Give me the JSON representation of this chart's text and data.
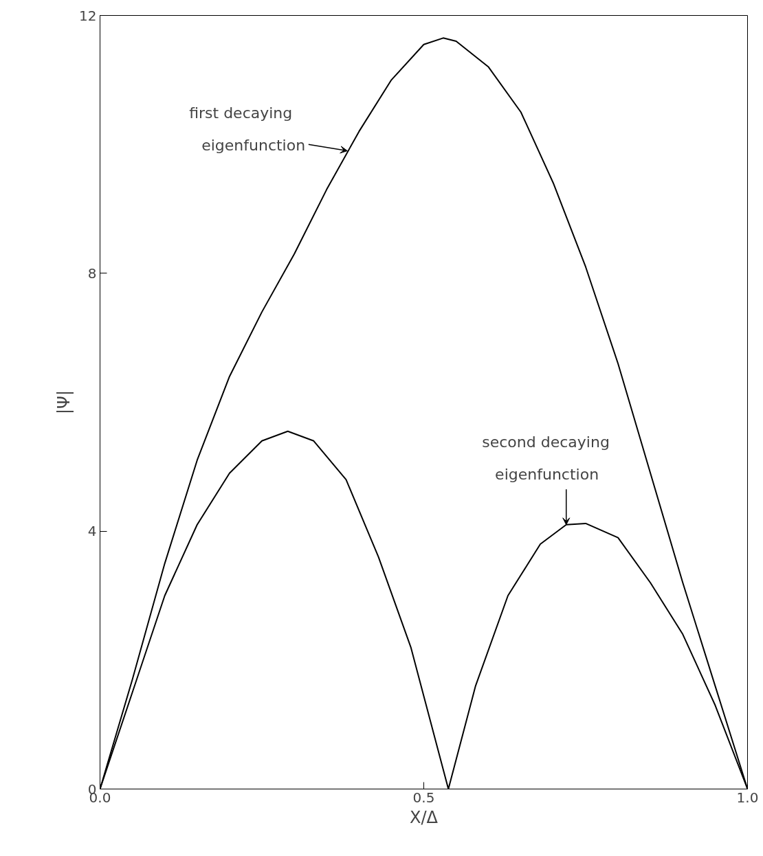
{
  "chart_data": {
    "type": "line",
    "xlabel": "X/Δ",
    "ylabel": "|Ψ|",
    "xlim": [
      0,
      1
    ],
    "ylim": [
      0,
      12
    ],
    "xticks": [
      {
        "value": 0,
        "label": "0.0"
      },
      0.5,
      {
        "value": 1,
        "label": "1.0"
      }
    ],
    "yticks": [
      0,
      4,
      8,
      12
    ],
    "grid": false,
    "marker": "none",
    "line_style": "solid",
    "series": [
      {
        "color": "#000000",
        "x": [
          0,
          0.05,
          0.1,
          0.15,
          0.2,
          0.25,
          0.3,
          0.35,
          0.4,
          0.45,
          0.5,
          0.53,
          0.55,
          0.6,
          0.65,
          0.7,
          0.75,
          0.8,
          0.85,
          0.9,
          0.95,
          1.0
        ],
        "values": [
          0,
          1.7,
          3.5,
          5.1,
          6.4,
          7.4,
          8.3,
          9.3,
          10.2,
          11.0,
          11.55,
          11.65,
          11.6,
          11.2,
          10.5,
          9.4,
          8.1,
          6.6,
          4.9,
          3.2,
          1.6,
          0
        ]
      },
      {
        "color": "#000000",
        "x": [
          0,
          0.05,
          0.1,
          0.15,
          0.2,
          0.25,
          0.29,
          0.33,
          0.38,
          0.43,
          0.48,
          0.538,
          0.58,
          0.63,
          0.68,
          0.72,
          0.75,
          0.8,
          0.85,
          0.9,
          0.95,
          1.0
        ],
        "values": [
          0,
          1.5,
          3.0,
          4.1,
          4.9,
          5.4,
          5.55,
          5.4,
          4.8,
          3.6,
          2.2,
          0,
          1.6,
          3.0,
          3.8,
          4.1,
          4.12,
          3.9,
          3.2,
          2.4,
          1.3,
          0
        ]
      }
    ],
    "annotations": [
      {
        "text": "first decaying\neigenfunction",
        "x": 0.382,
        "y": 9.9
      },
      {
        "text": "second decaying\neigenfunction",
        "x": 0.72,
        "y": 4.1
      }
    ]
  }
}
